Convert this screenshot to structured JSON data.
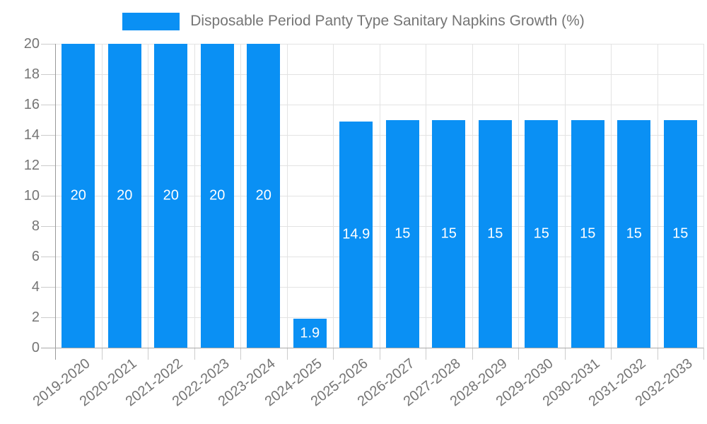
{
  "chart_data": {
    "type": "bar",
    "title": "Disposable Period Panty Type Sanitary Napkins Growth (%)",
    "categories": [
      "2019-2020",
      "2020-2021",
      "2021-2022",
      "2022-2023",
      "2023-2024",
      "2024-2025",
      "2025-2026",
      "2026-2027",
      "2027-2028",
      "2028-2029",
      "2029-2030",
      "2030-2031",
      "2031-2032",
      "2032-2033"
    ],
    "values": [
      20,
      20,
      20,
      20,
      20,
      1.9,
      14.9,
      15,
      15,
      15,
      15,
      15,
      15,
      15
    ],
    "value_labels": [
      "20",
      "20",
      "20",
      "20",
      "20",
      "1.9",
      "14.9",
      "15",
      "15",
      "15",
      "15",
      "15",
      "15",
      "15"
    ],
    "xlabel": "",
    "ylabel": "",
    "ylim": [
      0,
      20
    ],
    "yticks": [
      0,
      2,
      4,
      6,
      8,
      10,
      12,
      14,
      16,
      18,
      20
    ],
    "grid": true,
    "legend_position": "top-center",
    "colors": {
      "bar": "#0a90f4",
      "value_label": "#ffffff",
      "axis_text": "#757575",
      "gridline": "#e3e3e3",
      "axis_line": "#999999",
      "baseline": "#aaaaaa",
      "tick": "#cccccc"
    }
  }
}
